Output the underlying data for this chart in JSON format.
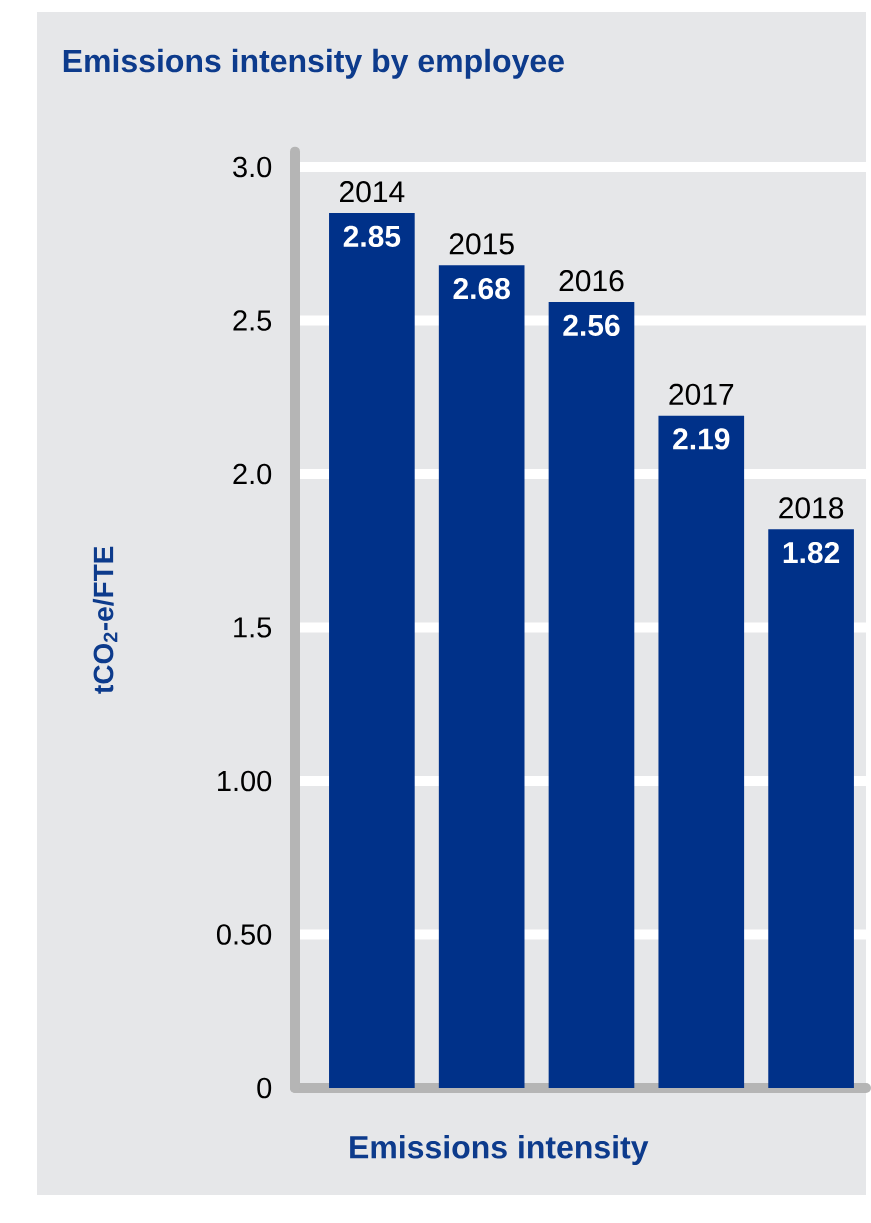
{
  "chart_data": {
    "type": "bar",
    "title": "Emissions intensity by employee",
    "xlabel": "Emissions intensity",
    "ylabel": "tCO$_{2}$-e/FTE",
    "categories": [
      "2014",
      "2015",
      "2016",
      "2017",
      "2018"
    ],
    "values": [
      2.85,
      2.68,
      2.56,
      2.19,
      1.82
    ],
    "color": "#003189",
    "ylim": [
      0,
      3.05
    ],
    "yticks": [
      0,
      {
        "value": 0.5,
        "label": "0.50"
      },
      {
        "value": 1,
        "label": "1.00"
      },
      {
        "value": 1.5,
        "label": "1.5"
      },
      {
        "value": 2,
        "label": "2.0"
      },
      {
        "value": 2.5,
        "label": "2.5"
      },
      {
        "value": 3,
        "label": "3.0"
      }
    ],
    "grid": "y",
    "data_labels": true
  }
}
